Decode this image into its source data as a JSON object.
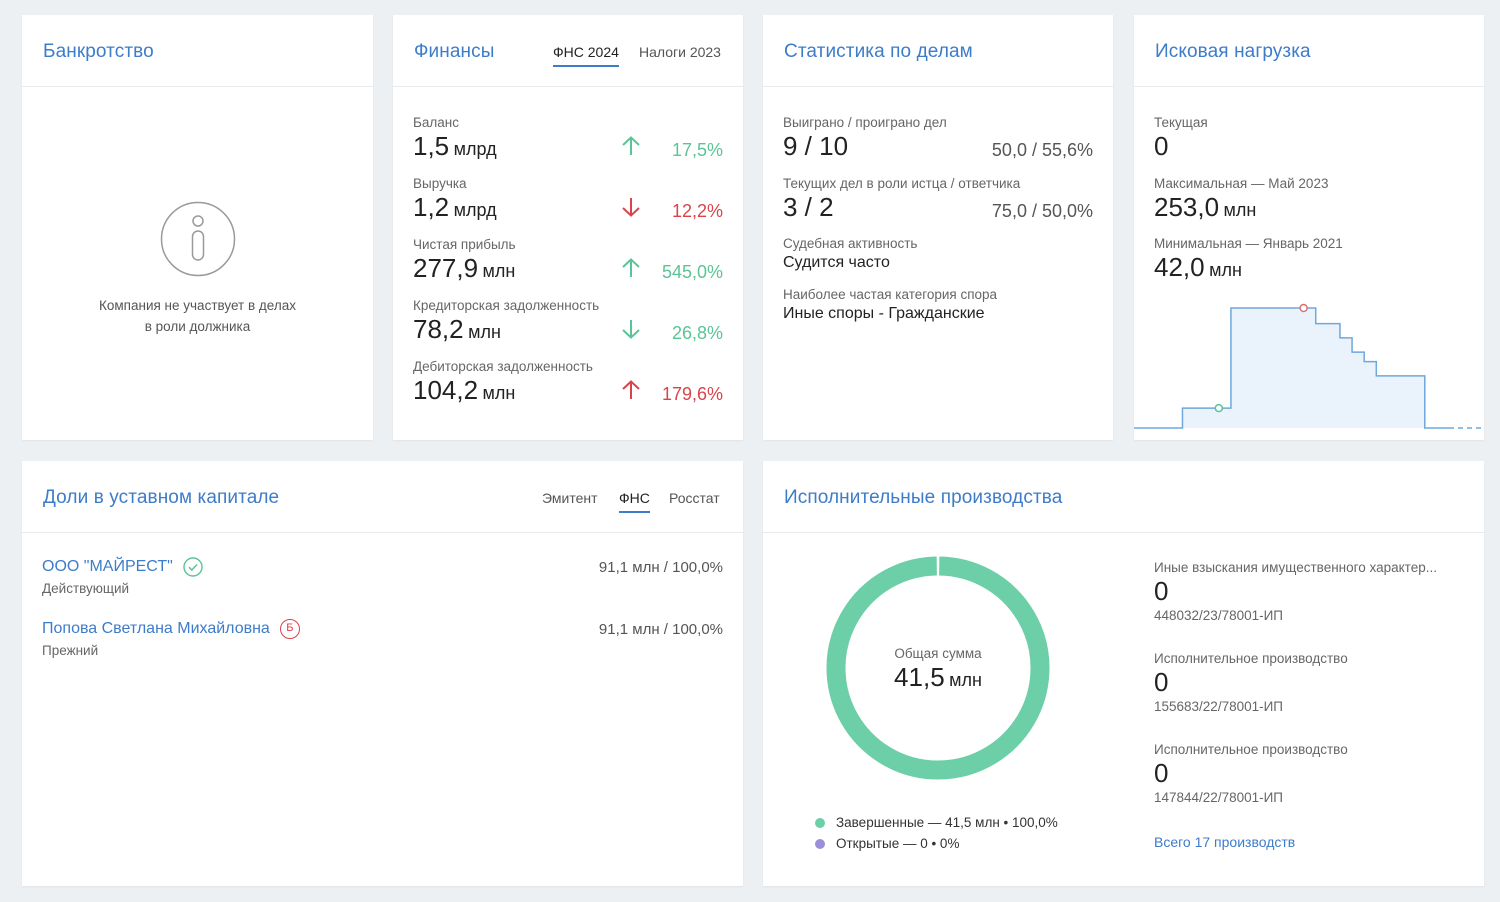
{
  "bankruptcy": {
    "title": "Банкротство",
    "message_line1": "Компания не участвует в делах",
    "message_line2": "в роли должника"
  },
  "finance": {
    "title": "Финансы",
    "tabs": [
      {
        "label": "ФНС 2024",
        "active": true
      },
      {
        "label": "Налоги 2023",
        "active": false
      }
    ],
    "rows": [
      {
        "label": "Баланс",
        "value": "1,5",
        "unit": "млрд",
        "change": "17,5%",
        "direction": "up",
        "color": "green"
      },
      {
        "label": "Выручка",
        "value": "1,2",
        "unit": "млрд",
        "change": "12,2%",
        "direction": "down",
        "color": "red"
      },
      {
        "label": "Чистая прибыль",
        "value": "277,9",
        "unit": "млн",
        "change": "545,0%",
        "direction": "up",
        "color": "green"
      },
      {
        "label": "Кредиторская задолженность",
        "value": "78,2",
        "unit": "млн",
        "change": "26,8%",
        "direction": "down",
        "color": "green"
      },
      {
        "label": "Дебиторская задолженность",
        "value": "104,2",
        "unit": "млн",
        "change": "179,6%",
        "direction": "up",
        "color": "red"
      }
    ]
  },
  "cases": {
    "title": "Статистика по делам",
    "won_label": "Выиграно / проиграно дел",
    "won_value": "9 / 10",
    "won_pct": "50,0 / 55,6%",
    "current_label": "Текущих дел в роли истца / ответчика",
    "current_value": "3 / 2",
    "current_pct": "75,0 / 50,0%",
    "activity_label": "Судебная активность",
    "activity_value": "Судится часто",
    "category_label": "Наиболее частая категория спора",
    "category_value": "Иные споры - Гражданские"
  },
  "claims": {
    "title": "Исковая нагрузка",
    "current_label": "Текущая",
    "current_value": "0",
    "max_label": "Максимальная — Май 2023",
    "max_value": "253,0",
    "max_unit": "млн",
    "min_label": "Минимальная — Январь 2021",
    "min_value": "42,0",
    "min_unit": "млн",
    "chart_data": {
      "type": "area",
      "values": [
        0,
        0,
        0,
        0,
        42,
        42,
        42,
        42,
        253,
        253,
        253,
        253,
        253,
        253,
        253,
        220,
        220,
        190,
        160,
        140,
        110,
        110,
        110,
        110,
        0,
        0,
        0
      ],
      "marked_min_index": 7,
      "marked_max_index": 14,
      "trailing_dashed": true,
      "colors": {
        "line": "#6fa8dc",
        "fill": "#eaf3fb",
        "min_marker": "#5bc497",
        "max_marker": "#e07070"
      }
    }
  },
  "shares": {
    "title": "Доли в уставном капитале",
    "tabs": [
      {
        "label": "Эмитент",
        "active": false
      },
      {
        "label": "ФНС",
        "active": true
      },
      {
        "label": "Росстат",
        "active": false
      }
    ],
    "holders": [
      {
        "name": "ООО \"МАЙРЕСТ\"",
        "status": "Действующий",
        "share": "91,1 млн / 100,0%",
        "badge": "check-circle-icon"
      },
      {
        "name": "Попова Светлана Михайловна",
        "status": "Прежний",
        "share": "91,1 млн / 100,0%",
        "badge": "b-letter-icon",
        "badge_text": "Б"
      }
    ]
  },
  "enforcement": {
    "title": "Исполнительные производства",
    "total_label": "Общая сумма",
    "total_value": "41,5",
    "total_unit": "млн",
    "legend": [
      {
        "label": "Завершенные — 41,5 млн • 100,0%",
        "color": "#6ccfa8"
      },
      {
        "label": "Открытые — 0 • 0%",
        "color": "#9b8fd9"
      }
    ],
    "chart_data": {
      "type": "pie",
      "categories": [
        "Завершенные",
        "Открытые"
      ],
      "values": [
        41.5,
        0
      ],
      "colors": [
        "#6ccfa8",
        "#9b8fd9"
      ]
    },
    "items": [
      {
        "label": "Иные взыскания имущественного характер...",
        "value": "0",
        "number": "448032/23/78001-ИП"
      },
      {
        "label": "Исполнительное производство",
        "value": "0",
        "number": "155683/22/78001-ИП"
      },
      {
        "label": "Исполнительное производство",
        "value": "0",
        "number": "147844/22/78001-ИП"
      }
    ],
    "all_link": "Всего 17 производств"
  }
}
